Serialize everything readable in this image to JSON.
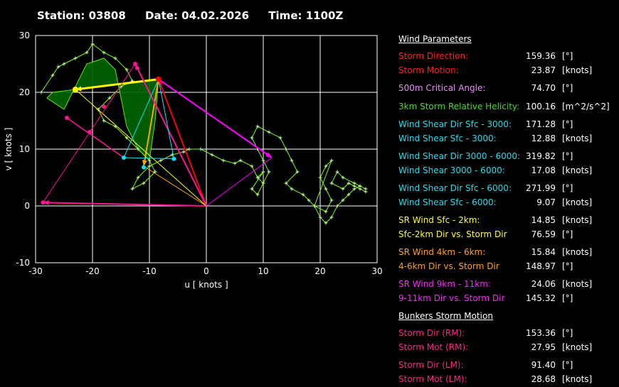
{
  "header": {
    "station": "Station: 03808",
    "date": "Date: 04.02.2026",
    "time": "Time: 1100Z"
  },
  "chart_data": {
    "type": "line",
    "title": "",
    "xlabel": "u  [ knots ]",
    "ylabel": "v  [ knots ]",
    "xlim": [
      -30,
      30
    ],
    "ylim": [
      -10,
      30
    ],
    "xticks": [
      -30,
      -20,
      -10,
      0,
      10,
      20,
      30
    ],
    "yticks": [
      -10,
      0,
      10,
      20,
      30
    ],
    "grid": true,
    "colors": {
      "background": "#000000",
      "hodograph": "#7CFC00",
      "helicity_fill": "#006400",
      "storm_motion": "#FF0000",
      "sfc_2km": "#FFFF00",
      "km4_6": "#FFA500",
      "km9_11": "#FF00FF",
      "shear": "#00E5FF",
      "bunkers": "#FF1493"
    },
    "series": [
      {
        "role": "hodograph",
        "x": [
          -29,
          -27,
          -26,
          -25,
          -23,
          -21,
          -20,
          -18,
          -16,
          -14,
          -13,
          -15,
          -17,
          -19,
          -18,
          -16,
          -14,
          -12,
          -10,
          -9,
          -11,
          -13,
          -12,
          -10,
          -8,
          -6,
          -4,
          -3,
          -1,
          1,
          3,
          5,
          6,
          8,
          9,
          10,
          9,
          10,
          8,
          9,
          10,
          11,
          10,
          9,
          8,
          9,
          11,
          13,
          14,
          15,
          16,
          14,
          15,
          17,
          18,
          19,
          21,
          22,
          21,
          20,
          21,
          22,
          19,
          20,
          21,
          22,
          23,
          24,
          25,
          26,
          27,
          28,
          26,
          24,
          23,
          22,
          24,
          25,
          26,
          27,
          28
        ],
        "y": [
          20,
          23,
          24.5,
          25,
          26,
          27,
          28.5,
          27,
          26,
          24,
          22,
          21,
          19,
          17,
          15,
          14,
          12,
          10,
          8,
          6,
          4,
          3,
          5,
          7,
          8,
          9,
          9.5,
          10,
          10,
          9,
          8,
          7.5,
          8,
          7,
          5,
          4,
          5,
          6,
          3,
          2,
          4,
          6,
          8,
          10,
          12,
          14,
          13,
          12,
          10,
          8,
          6,
          4,
          3,
          2,
          1,
          0,
          -1,
          1,
          3,
          5,
          7,
          8,
          0,
          -2,
          -3,
          -2,
          0,
          1,
          2,
          3,
          3.5,
          3,
          4,
          5,
          6,
          4,
          3,
          4,
          3.5,
          3,
          2.5
        ]
      },
      {
        "role": "storm-motion-vector",
        "x": [
          0,
          -8.4
        ],
        "y": [
          0,
          22.3
        ]
      },
      {
        "role": "sr-wind-sfc-2km",
        "x": [
          -8.4,
          -23
        ],
        "y": [
          22.3,
          20.5
        ]
      },
      {
        "role": "sr-wind-4-6km",
        "x": [
          -8.4,
          -11
        ],
        "y": [
          22.3,
          7
        ]
      },
      {
        "role": "sr-wind-9-11km",
        "x": [
          -8.4,
          11.5
        ],
        "y": [
          22.3,
          8.5
        ]
      },
      {
        "role": "bunkers-rm",
        "x": [
          0,
          -12.5
        ],
        "y": [
          0,
          25
        ]
      },
      {
        "role": "bunkers-lm",
        "x": [
          0,
          -28.7
        ],
        "y": [
          0,
          0.6
        ]
      }
    ],
    "helicity_polygon": {
      "x": [
        -8.4,
        -23,
        -27,
        -28,
        -25,
        -21,
        -18,
        -16,
        -14,
        -12,
        -10,
        -9
      ],
      "y": [
        22.3,
        20.5,
        20,
        19,
        17,
        25,
        26,
        24,
        14,
        10,
        8,
        15
      ]
    },
    "shear_points": {
      "x": [
        -14.5,
        -5.7,
        -11
      ],
      "y": [
        8.5,
        8.3,
        6.8
      ]
    },
    "bunkers_points": {
      "x": [
        -18,
        -20.5,
        -24.5,
        -28.7,
        -12.5
      ],
      "y": [
        17.5,
        13,
        15.5,
        0.6,
        25
      ]
    }
  },
  "params": {
    "sections": [
      {
        "title": "Wind Parameters",
        "rows": [
          {
            "label": "Storm Direction:",
            "value": "159.36",
            "unit": "[°]",
            "color": "#FF2020"
          },
          {
            "label": "Storm Motion:",
            "value": "23.87",
            "unit": "[knots]",
            "color": "#FF2020"
          },
          {
            "label": "500m Critical Angle:",
            "value": "74.70",
            "unit": "[°]",
            "color": "#EE88FF",
            "gap": true
          },
          {
            "label": "3km Storm Relative Helicity:",
            "value": "100.16",
            "unit": "[m^2/s^2]",
            "color": "#44DD22",
            "gap": true
          },
          {
            "label": "Wind Shear Dir Sfc - 3000:",
            "value": "171.28",
            "unit": "[°]",
            "color": "#22DDEE",
            "gap": true
          },
          {
            "label": "Wind Shear Sfc - 3000:",
            "value": "12.88",
            "unit": "[knots]",
            "color": "#22DDEE"
          },
          {
            "label": "Wind Shear Dir 3000 - 6000:",
            "value": "319.82",
            "unit": "[°]",
            "color": "#22DDEE",
            "gap": true
          },
          {
            "label": "Wind Shear 3000 - 6000:",
            "value": "17.08",
            "unit": "[knots]",
            "color": "#22DDEE"
          },
          {
            "label": "Wind Shear Dir Sfc - 6000:",
            "value": "271.99",
            "unit": "[°]",
            "color": "#22DDEE",
            "gap": true
          },
          {
            "label": "Wind Shear Sfc - 6000:",
            "value": "9.07",
            "unit": "[knots]",
            "color": "#22DDEE"
          },
          {
            "label": "SR Wind Sfc - 2km:",
            "value": "14.85",
            "unit": "[knots]",
            "color": "#FFFF22",
            "gap": true
          },
          {
            "label": "Sfc-2km Dir vs. Storm Dir",
            "value": "76.59",
            "unit": "[°]",
            "color": "#FFFF22"
          },
          {
            "label": "SR Wind 4km - 6km:",
            "value": "15.84",
            "unit": "[knots]",
            "color": "#FFA020",
            "gap": true
          },
          {
            "label": "4-6km Dir vs. Storm Dir",
            "value": "148.97",
            "unit": "[°]",
            "color": "#FFA020"
          },
          {
            "label": "SR Wind 9km - 11km:",
            "value": "24.06",
            "unit": "[knots]",
            "color": "#FF22FF",
            "gap": true
          },
          {
            "label": "9-11km Dir vs. Storm Dir",
            "value": "145.32",
            "unit": "[°]",
            "color": "#FF22FF"
          }
        ]
      },
      {
        "title": "Bunkers Storm Motion",
        "rows": [
          {
            "label": "Storm Dir (RM):",
            "value": "153.36",
            "unit": "[°]",
            "color": "#FF2288"
          },
          {
            "label": "Storm Mot (RM):",
            "value": "27.95",
            "unit": "[knots]",
            "color": "#FF2288"
          },
          {
            "label": "Storm Dir (LM):",
            "value": "91.40",
            "unit": "[°]",
            "color": "#FF2288",
            "gap": true
          },
          {
            "label": "Storm Mot (LM):",
            "value": "28.68",
            "unit": "[knots]",
            "color": "#FF2288"
          }
        ]
      }
    ]
  }
}
